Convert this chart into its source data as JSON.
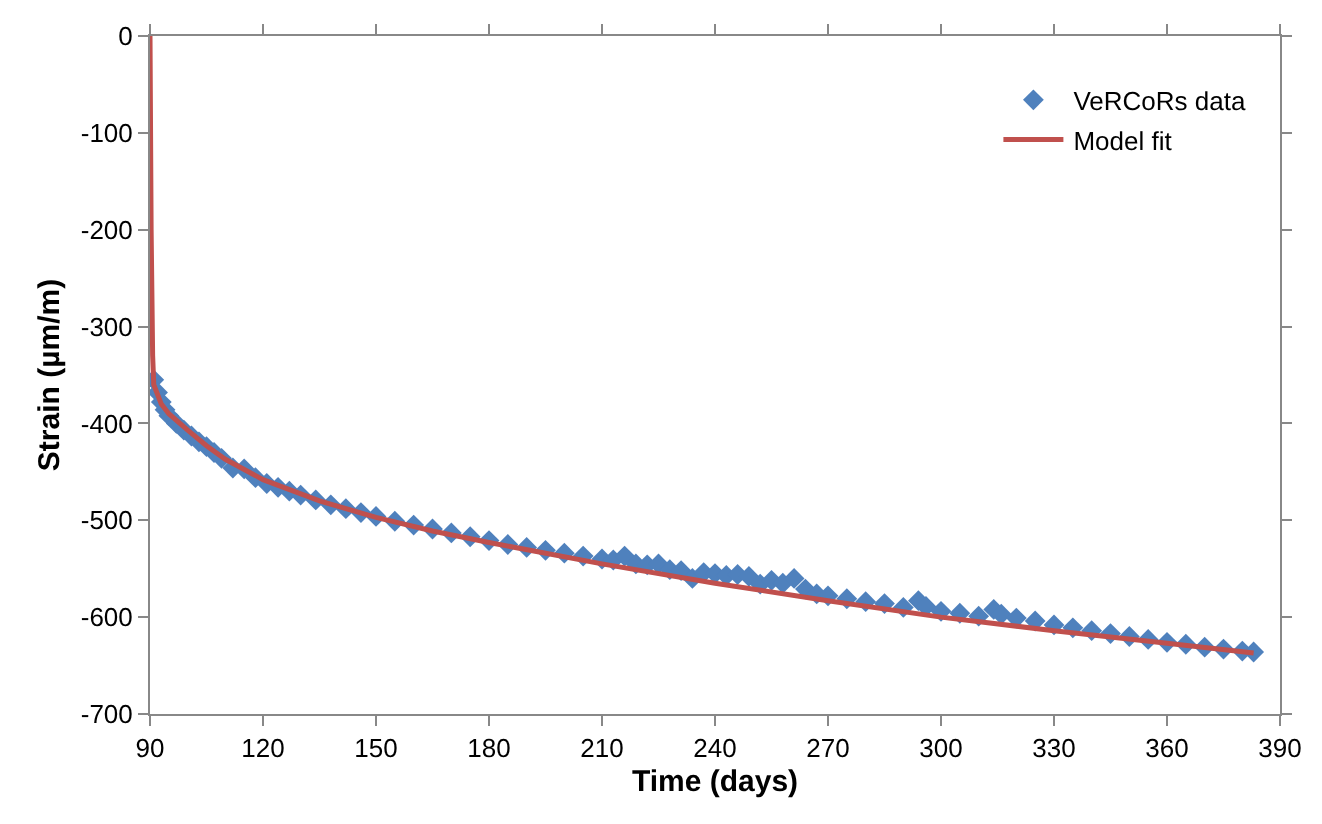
{
  "chart_data": {
    "type": "scatter",
    "xlabel": "Time (days)",
    "ylabel": "Strain (µm/m)",
    "xlim": [
      90,
      390
    ],
    "xticks": [
      90,
      120,
      150,
      180,
      210,
      240,
      270,
      300,
      330,
      360,
      390
    ],
    "ylim": [
      -700,
      0
    ],
    "yticks": [
      -700,
      -600,
      -500,
      -400,
      -300,
      -200,
      -100,
      0
    ],
    "grid": false,
    "legend": "top right",
    "series": [
      {
        "name": "VeRCoRs data",
        "color": "#4f81bd",
        "marker": "diamond",
        "x": [
          91,
          92,
          93,
          94,
          95,
          97,
          99,
          101,
          103,
          105,
          107,
          109,
          112,
          115,
          118,
          121,
          124,
          127,
          130,
          134,
          138,
          142,
          146,
          150,
          155,
          160,
          165,
          170,
          175,
          180,
          185,
          190,
          195,
          200,
          205,
          210,
          213,
          216,
          219,
          222,
          225,
          228,
          231,
          234,
          237,
          240,
          243,
          246,
          249,
          252,
          255,
          258,
          261,
          264,
          267,
          270,
          275,
          280,
          285,
          290,
          294,
          296,
          300,
          305,
          310,
          314,
          316,
          320,
          325,
          330,
          335,
          340,
          345,
          350,
          355,
          360,
          365,
          370,
          375,
          380,
          383
        ],
        "values": [
          -355,
          -368,
          -378,
          -386,
          -392,
          -400,
          -407,
          -413,
          -419,
          -424,
          -430,
          -436,
          -446,
          -447,
          -456,
          -462,
          -466,
          -470,
          -474,
          -479,
          -484,
          -488,
          -492,
          -496,
          -501,
          -505,
          -509,
          -513,
          -517,
          -521,
          -525,
          -528,
          -531,
          -534,
          -537,
          -540,
          -541,
          -537,
          -545,
          -546,
          -545,
          -551,
          -552,
          -560,
          -554,
          -555,
          -557,
          -556,
          -558,
          -566,
          -562,
          -565,
          -560,
          -571,
          -576,
          -578,
          -581,
          -584,
          -586,
          -590,
          -583,
          -589,
          -594,
          -596,
          -599,
          -592,
          -597,
          -601,
          -604,
          -608,
          -611,
          -614,
          -617,
          -620,
          -623,
          -626,
          -628,
          -631,
          -633,
          -635,
          -636
        ]
      },
      {
        "name": "Model fit",
        "type": "line",
        "color": "#c0504d",
        "marker": "none",
        "x": [
          90,
          90.3,
          90.7,
          91,
          93,
          95,
          100,
          105,
          110,
          120,
          135,
          150,
          165,
          180,
          210,
          240,
          270,
          300,
          330,
          360,
          383
        ],
        "values": [
          0,
          -200,
          -330,
          -360,
          -380,
          -390,
          -407,
          -423,
          -437,
          -458,
          -480,
          -497,
          -511,
          -523,
          -545,
          -565,
          -583,
          -600,
          -614,
          -627,
          -637
        ]
      }
    ]
  }
}
